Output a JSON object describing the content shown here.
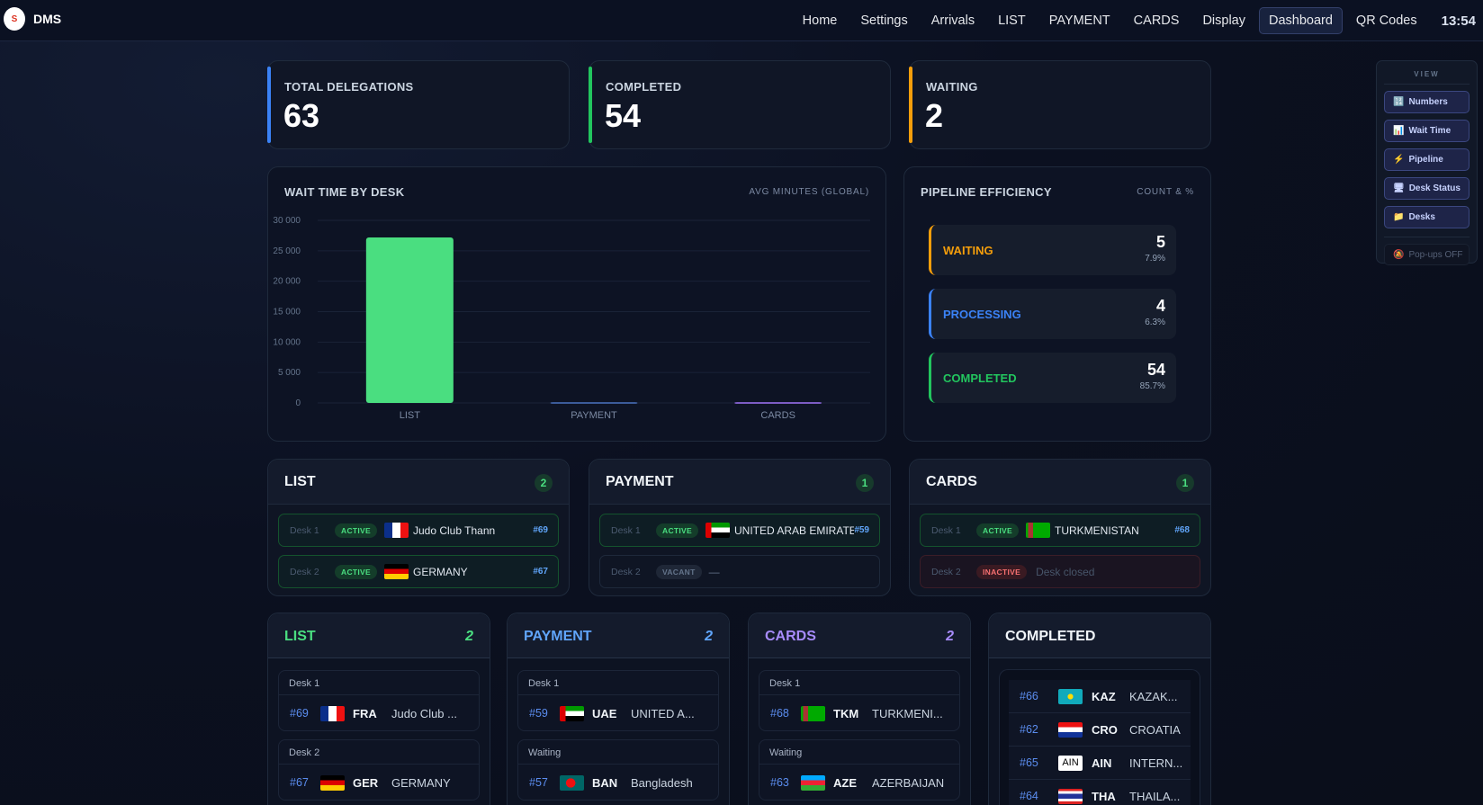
{
  "header": {
    "brand": "DMS",
    "logo_text": "S",
    "clock": "13:54",
    "nav": [
      {
        "label": "Home"
      },
      {
        "label": "Settings"
      },
      {
        "label": "Arrivals"
      },
      {
        "label": "LIST"
      },
      {
        "label": "PAYMENT"
      },
      {
        "label": "CARDS"
      },
      {
        "label": "Display"
      },
      {
        "label": "Dashboard",
        "active": true
      },
      {
        "label": "QR Codes"
      }
    ]
  },
  "stats": [
    {
      "label": "TOTAL DELEGATIONS",
      "value": "63",
      "color": "#3b82f6"
    },
    {
      "label": "COMPLETED",
      "value": "54",
      "color": "#22c55e"
    },
    {
      "label": "WAITING",
      "value": "2",
      "color": "#f59e0b"
    }
  ],
  "wait_chart": {
    "title": "WAIT TIME BY DESK",
    "subtitle": "AVG MINUTES (GLOBAL)"
  },
  "chart_data": {
    "type": "bar",
    "categories": [
      "LIST",
      "PAYMENT",
      "CARDS"
    ],
    "values": [
      27200,
      150,
      150
    ],
    "colors": [
      "#4ade80",
      "#3b5b9a",
      "#7c5cc4"
    ],
    "ylim": [
      0,
      30000
    ],
    "yticks": [
      "0",
      "5 000",
      "10 000",
      "15 000",
      "20 000",
      "25 000",
      "30 000"
    ],
    "yticks_values": [
      0,
      5000,
      10000,
      15000,
      20000,
      25000,
      30000
    ],
    "grid": true,
    "title": "",
    "xlabel": "",
    "ylabel": ""
  },
  "pipeline": {
    "title": "PIPELINE EFFICIENCY",
    "subtitle": "COUNT & %",
    "items": [
      {
        "label": "WAITING",
        "count": "5",
        "pct": "7.9%",
        "color": "#f59e0b"
      },
      {
        "label": "PROCESSING",
        "count": "4",
        "pct": "6.3%",
        "color": "#3b82f6"
      },
      {
        "label": "COMPLETED",
        "count": "54",
        "pct": "85.7%",
        "color": "#22c55e"
      }
    ]
  },
  "desks": [
    {
      "title": "LIST",
      "count": "2",
      "rows": [
        {
          "desk": "Desk 1",
          "status": "ACTIVE",
          "flag": "fr",
          "name": "Judo Club Thann",
          "num": "#69"
        },
        {
          "desk": "Desk 2",
          "status": "ACTIVE",
          "flag": "de",
          "name": "GERMANY",
          "num": "#67"
        }
      ]
    },
    {
      "title": "PAYMENT",
      "count": "1",
      "rows": [
        {
          "desk": "Desk 1",
          "status": "ACTIVE",
          "flag": "ae",
          "name": "UNITED ARAB EMIRATES",
          "num": "#59"
        },
        {
          "desk": "Desk 2",
          "status": "VACANT",
          "name": "—"
        }
      ]
    },
    {
      "title": "CARDS",
      "count": "1",
      "rows": [
        {
          "desk": "Desk 1",
          "status": "ACTIVE",
          "flag": "tm",
          "name": "TURKMENISTAN",
          "num": "#68"
        },
        {
          "desk": "Desk 2",
          "status": "INACTIVE",
          "name": "Desk closed"
        }
      ]
    }
  ],
  "queues": [
    {
      "title": "LIST",
      "count": "2",
      "color": "#4ade80",
      "groups": [
        {
          "label": "Desk 1",
          "num": "#69",
          "flag": "fr",
          "code": "FRA",
          "name": "Judo Club ..."
        },
        {
          "label": "Desk 2",
          "num": "#67",
          "flag": "de",
          "code": "GER",
          "name": "GERMANY"
        }
      ]
    },
    {
      "title": "PAYMENT",
      "count": "2",
      "color": "#60a5fa",
      "groups": [
        {
          "label": "Desk 1",
          "num": "#59",
          "flag": "ae",
          "code": "UAE",
          "name": "UNITED A..."
        },
        {
          "label": "Waiting",
          "num": "#57",
          "flag": "bd",
          "code": "BAN",
          "name": "Bangladesh"
        }
      ]
    },
    {
      "title": "CARDS",
      "count": "2",
      "color": "#a78bfa",
      "groups": [
        {
          "label": "Desk 1",
          "num": "#68",
          "flag": "tm",
          "code": "TKM",
          "name": "TURKMENI..."
        },
        {
          "label": "Waiting",
          "num": "#63",
          "flag": "az",
          "code": "AZE",
          "name": "AZERBAIJAN"
        }
      ]
    }
  ],
  "completed": {
    "title": "COMPLETED",
    "items": [
      {
        "num": "#66",
        "flag": "kz",
        "code": "KAZ",
        "name": "KAZAK..."
      },
      {
        "num": "#62",
        "flag": "hr",
        "code": "CRO",
        "name": "CROATIA"
      },
      {
        "num": "#65",
        "flag": "ain",
        "flag_text": "AIN",
        "code": "AIN",
        "name": "INTERN..."
      },
      {
        "num": "#64",
        "flag": "th",
        "code": "THA",
        "name": "THAILA..."
      }
    ]
  },
  "view_panel": {
    "title": "VIEW",
    "buttons": [
      {
        "icon": "numbers-icon",
        "glyph": "🔢",
        "label": "Numbers"
      },
      {
        "icon": "chart-icon",
        "glyph": "📊",
        "label": "Wait Time"
      },
      {
        "icon": "lightning-icon",
        "glyph": "⚡",
        "label": "Pipeline"
      },
      {
        "icon": "monitor-icon",
        "glyph": "🖥",
        "label": "Desk Status"
      },
      {
        "icon": "folder-icon",
        "glyph": "📁",
        "label": "Desks"
      }
    ],
    "popups": {
      "icon": "bell-off-icon",
      "glyph": "🔕",
      "label": "Pop-ups OFF"
    }
  }
}
